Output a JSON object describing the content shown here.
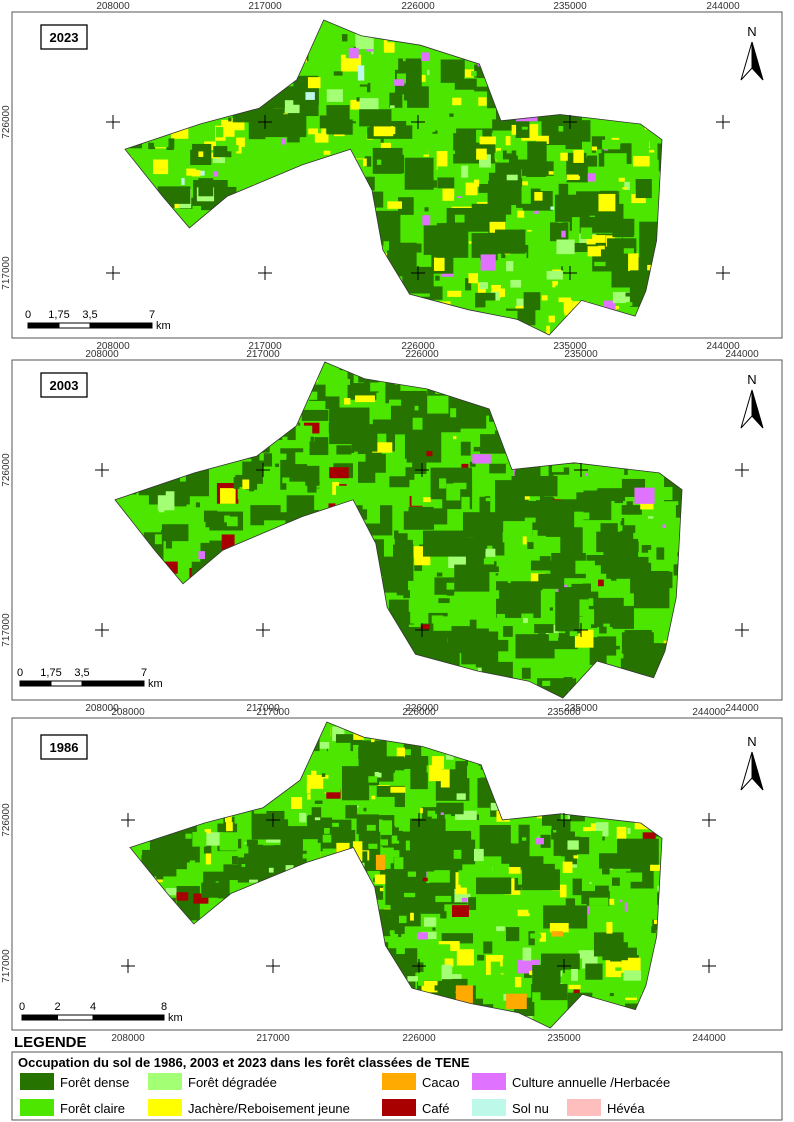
{
  "panels": [
    {
      "year": "2023",
      "x_labels": [
        "208000",
        "217000",
        "226000",
        "235000",
        "244000"
      ],
      "y_labels": [
        "726000",
        "717000"
      ],
      "scale_labels": [
        "0",
        "1,75",
        "3,5",
        "7"
      ],
      "scale_unit": "km",
      "north": "N"
    },
    {
      "year": "2003",
      "x_labels": [
        "208000",
        "217000",
        "226000",
        "235000",
        "244000"
      ],
      "y_labels": [
        "726000",
        "717000"
      ],
      "scale_labels": [
        "0",
        "1,75",
        "3,5",
        "7"
      ],
      "scale_unit": "km",
      "north": "N"
    },
    {
      "year": "1986",
      "x_labels": [
        "208000",
        "217000",
        "226000",
        "235000",
        "244000"
      ],
      "y_labels": [
        "726000",
        "717000"
      ],
      "scale_labels": [
        "0",
        "2",
        "4",
        "8"
      ],
      "scale_unit": "km",
      "north": "N"
    }
  ],
  "legend": {
    "heading": "LEGENDE",
    "title": "Occupation du sol de 1986, 2003 et 2023 dans les forêt classées de TENE",
    "items": [
      {
        "label": "Forêt dense",
        "color": "#267300"
      },
      {
        "label": "Forêt claire",
        "color": "#4ce600"
      },
      {
        "label": "Forêt dégradée",
        "color": "#a3ff73"
      },
      {
        "label": "Jachère/Reboisement jeune",
        "color": "#ffff00"
      },
      {
        "label": "Cacao",
        "color": "#ffaa00"
      },
      {
        "label": "Café",
        "color": "#a80000"
      },
      {
        "label": "Culture annuelle /Herbacée",
        "color": "#df73ff"
      },
      {
        "label": "Sol nu",
        "color": "#bef8e8"
      },
      {
        "label": "Hévéa",
        "color": "#ffbebe"
      }
    ]
  }
}
